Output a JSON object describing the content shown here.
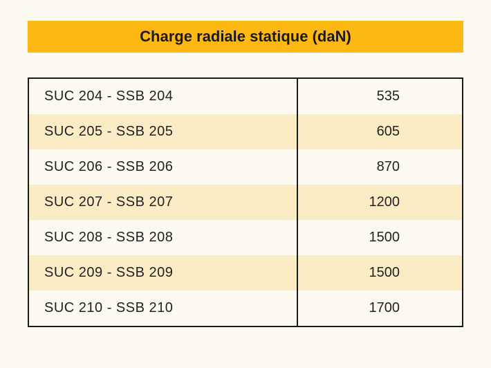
{
  "title": "Charge radiale statique (daN)",
  "table": {
    "columns": [
      "label",
      "value"
    ],
    "rows": [
      {
        "label": "SUC 204 - SSB 204",
        "value": "535"
      },
      {
        "label": "SUC 205 - SSB 205",
        "value": "605"
      },
      {
        "label": "SUC 206 - SSB 206",
        "value": "870"
      },
      {
        "label": "SUC 207 - SSB 207",
        "value": "1200"
      },
      {
        "label": "SUC 208 - SSB 208",
        "value": "1500"
      },
      {
        "label": "SUC 209 - SSB 209",
        "value": "1500"
      },
      {
        "label": "SUC 210 - SSB 210",
        "value": "1700"
      }
    ],
    "header_bg_color": "#fdb813",
    "title_fontsize": 22,
    "title_fontweight": "bold",
    "cell_fontsize": 20,
    "page_bg_color": "#fcf9f0",
    "stripe_color": "#fcecc5",
    "border_color": "#1a1a1a",
    "label_col_width_pct": 62,
    "value_col_width_pct": 38
  }
}
